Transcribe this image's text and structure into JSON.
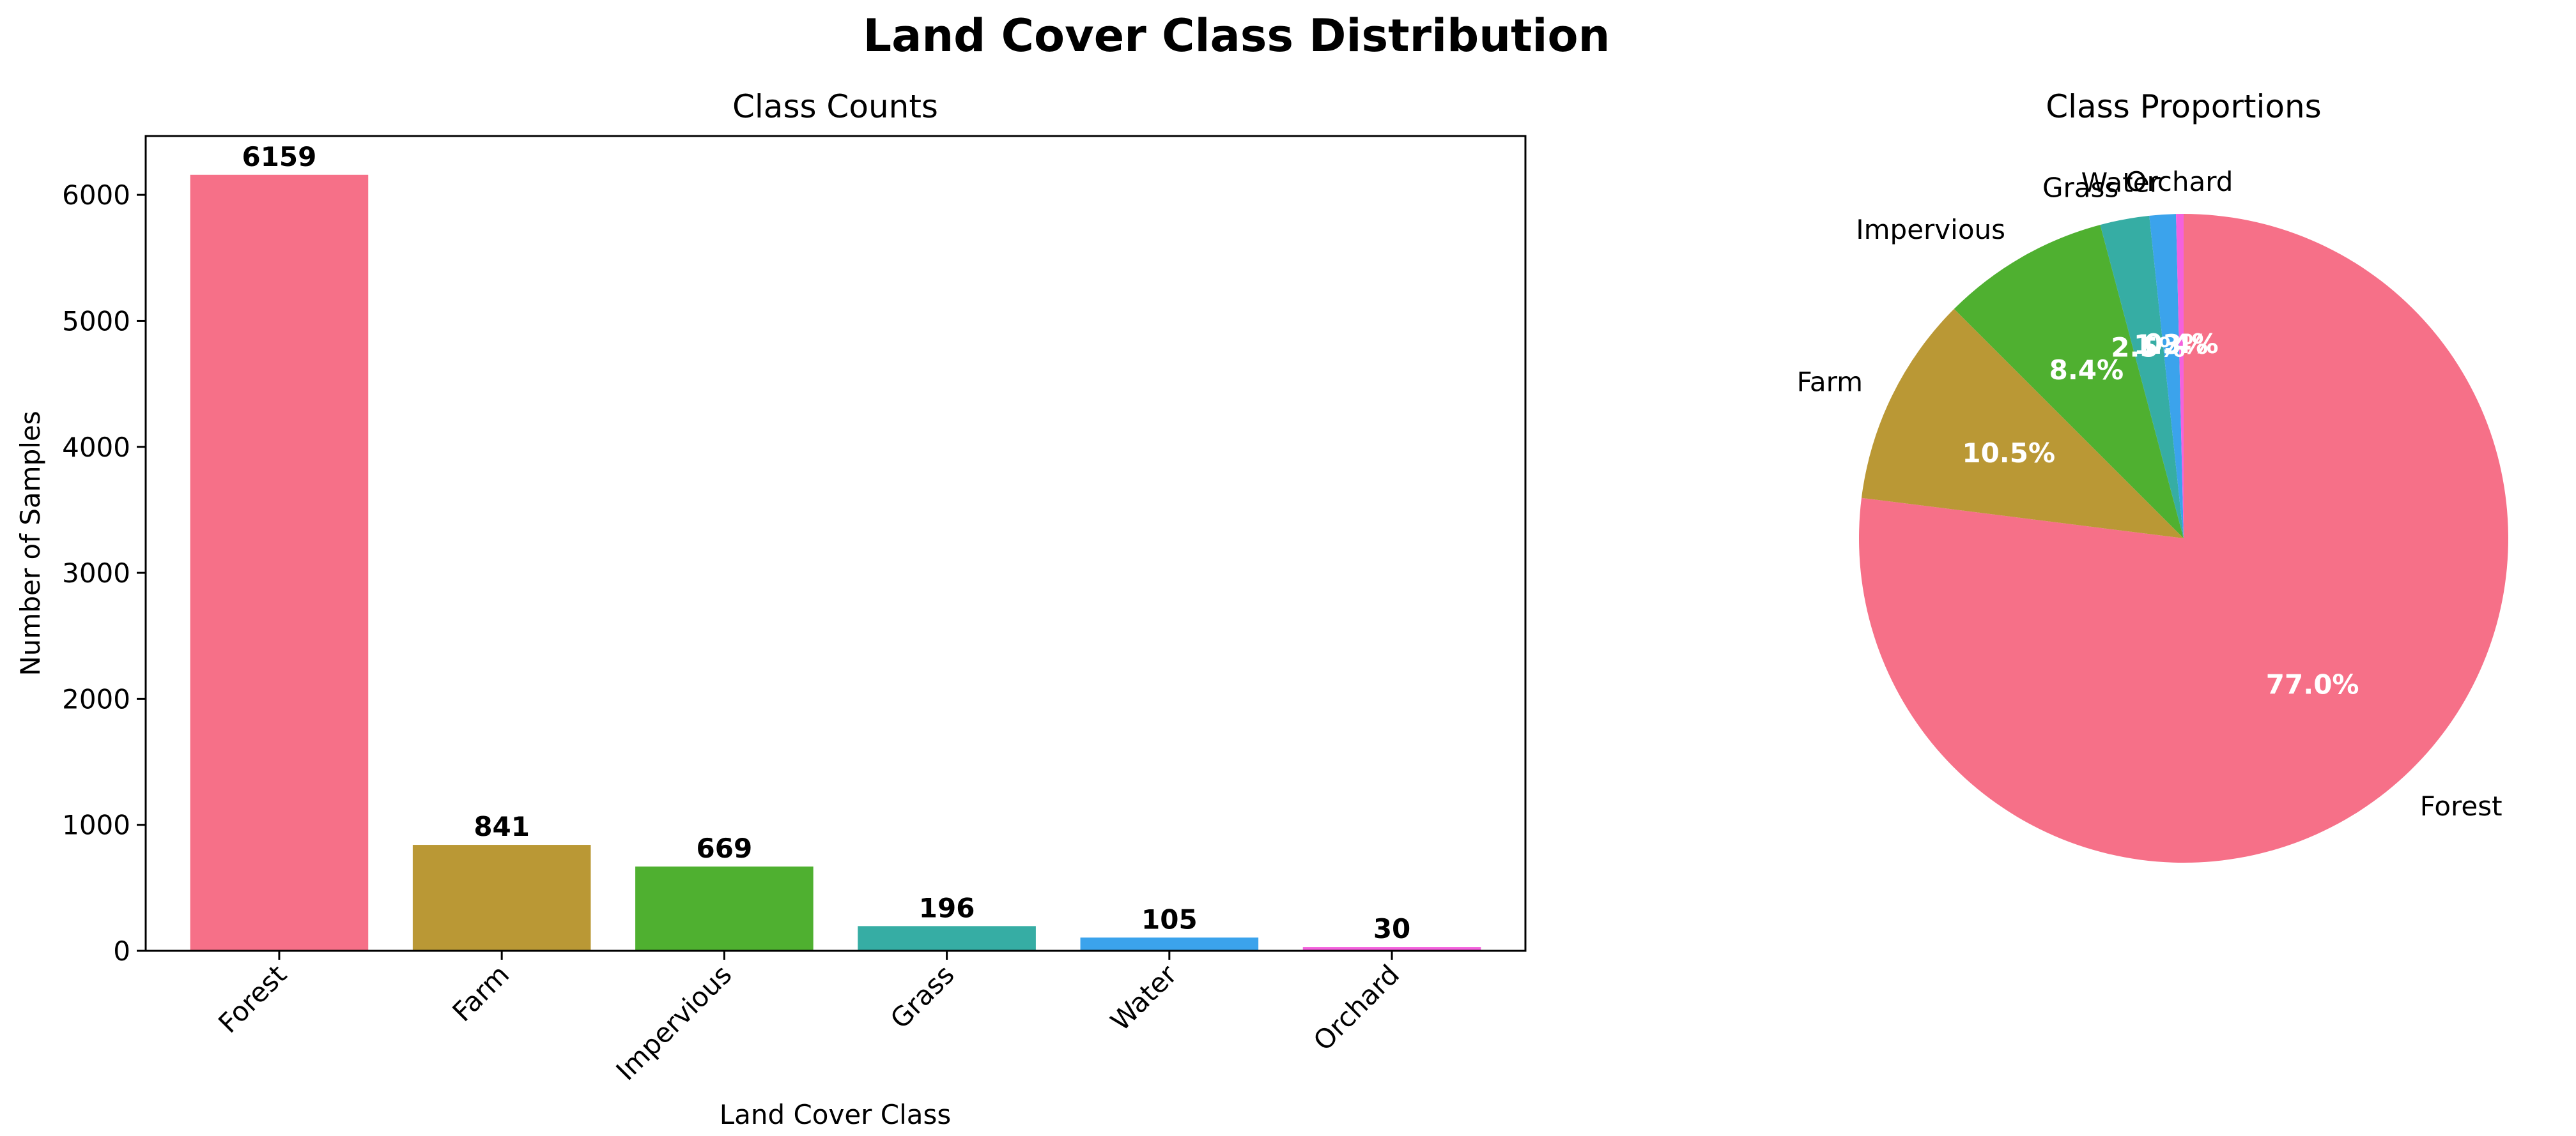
{
  "figure": {
    "suptitle": "Land Cover Class Distribution"
  },
  "colors": {
    "Forest": "#f67088",
    "Farm": "#ba9835",
    "Impervious": "#4fb030",
    "Grass": "#36ada4",
    "Water": "#3ba3ec",
    "Orchard": "#f461dd"
  },
  "chart_data": [
    {
      "type": "bar",
      "title": "Class Counts",
      "xlabel": "Land Cover Class",
      "ylabel": "Number of Samples",
      "categories": [
        "Forest",
        "Farm",
        "Impervious",
        "Grass",
        "Water",
        "Orchard"
      ],
      "values": [
        6159,
        841,
        669,
        196,
        105,
        30
      ],
      "value_labels": [
        "6159",
        "841",
        "669",
        "196",
        "105",
        "30"
      ],
      "ylim": [
        0,
        6467
      ],
      "yticks": [
        0,
        1000,
        2000,
        3000,
        4000,
        5000,
        6000
      ],
      "ytick_labels": [
        "0",
        "1000",
        "2000",
        "3000",
        "4000",
        "5000",
        "6000"
      ],
      "grid": false,
      "xtick_rotation": 45
    },
    {
      "type": "pie",
      "title": "Class Proportions",
      "categories": [
        "Forest",
        "Farm",
        "Impervious",
        "Grass",
        "Water",
        "Orchard"
      ],
      "values": [
        6159,
        841,
        669,
        196,
        105,
        30
      ],
      "percent_labels": [
        "77.0%",
        "10.5%",
        "8.4%",
        "2.5%",
        "1.3%",
        "0.4%"
      ],
      "start_angle": 90,
      "counterclockwise": false
    }
  ]
}
